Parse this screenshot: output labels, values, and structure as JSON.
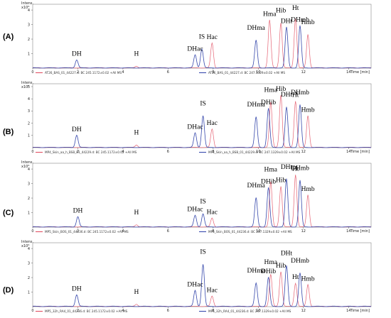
{
  "chart_data": [
    {
      "type": "line",
      "panel_label": "(A)",
      "y_axis_label": "Intens.",
      "y_multiplier": "x10⁶",
      "x_axis_label": "Time [min]",
      "xlim": [
        0,
        15
      ],
      "ylim": [
        0,
        4.2
      ],
      "xticks": [
        "0",
        "2",
        "4",
        "6",
        "8",
        "10",
        "12",
        "14"
      ],
      "yticks": [
        "1",
        "2",
        "3",
        "4"
      ],
      "legend": [
        "AT26_BAS_01_44227.d: BC 245.1172±0.02 +All MS",
        "AT26_BAS_01_44227.d: BC 247.1329±0.02 +All MS"
      ],
      "series_colors": [
        "#e0465a",
        "#2c3fa8"
      ],
      "peaks": [
        {
          "label": "DH",
          "x": 1.95,
          "y": 0.55,
          "series": 1
        },
        {
          "label": "H",
          "x": 4.6,
          "y": 0.12,
          "series": 0
        },
        {
          "label": "DHac",
          "x": 7.2,
          "y": 0.9,
          "series": 1
        },
        {
          "label": "IS",
          "x": 7.5,
          "y": 1.3,
          "series": 1
        },
        {
          "label": "Hac",
          "x": 7.95,
          "y": 1.7,
          "series": 0
        },
        {
          "label": "DHma",
          "x": 9.9,
          "y": 1.9,
          "series": 1
        },
        {
          "label": "Hma",
          "x": 10.5,
          "y": 3.3,
          "series": 0
        },
        {
          "label": "Hib",
          "x": 11.0,
          "y": 3.1,
          "series": 0
        },
        {
          "label": "DHt",
          "x": 11.25,
          "y": 2.8,
          "series": 1
        },
        {
          "label": "Ht",
          "x": 11.65,
          "y": 3.4,
          "series": 0
        },
        {
          "label": "DHmb",
          "x": 11.85,
          "y": 2.9,
          "series": 1
        },
        {
          "label": "Hmb",
          "x": 12.2,
          "y": 2.3,
          "series": 0
        }
      ]
    },
    {
      "type": "line",
      "panel_label": "(B)",
      "y_axis_label": "Intens.",
      "y_multiplier": "x10⁶",
      "x_axis_label": "Time [min]",
      "xlim": [
        0,
        15
      ],
      "ylim": [
        0,
        5.0
      ],
      "xticks": [
        "0",
        "2",
        "4",
        "6",
        "8",
        "10",
        "12",
        "14"
      ],
      "yticks": [
        "1",
        "2",
        "3",
        "4",
        "5"
      ],
      "legend": [
        "MP4_Skin_aa_h_BSB_01_44229.d: BC 245.1172±0.02 +All MS",
        "MP4_Skin_aa_h_BSB_01_44229.d: BC 247.1329±0.02 +All MS"
      ],
      "series_colors": [
        "#e0465a",
        "#2c3fa8"
      ],
      "peaks": [
        {
          "label": "DH",
          "x": 1.95,
          "y": 1.0,
          "series": 1
        },
        {
          "label": "H",
          "x": 4.6,
          "y": 0.2,
          "series": 0
        },
        {
          "label": "DHac",
          "x": 7.2,
          "y": 1.2,
          "series": 1
        },
        {
          "label": "IS",
          "x": 7.55,
          "y": 2.6,
          "series": 1
        },
        {
          "label": "Hac",
          "x": 7.95,
          "y": 1.5,
          "series": 0
        },
        {
          "label": "DHma",
          "x": 9.9,
          "y": 2.5,
          "series": 1
        },
        {
          "label": "DHib",
          "x": 10.45,
          "y": 3.2,
          "series": 1
        },
        {
          "label": "Hma",
          "x": 10.55,
          "y": 3.7,
          "series": 0
        },
        {
          "label": "Hib",
          "x": 11.0,
          "y": 4.3,
          "series": 0
        },
        {
          "label": "DHt",
          "x": 11.25,
          "y": 3.3,
          "series": 1
        },
        {
          "label": "Ht",
          "x": 11.65,
          "y": 3.8,
          "series": 0
        },
        {
          "label": "DHmb",
          "x": 11.85,
          "y": 3.5,
          "series": 1
        },
        {
          "label": "Hmb",
          "x": 12.2,
          "y": 2.6,
          "series": 0
        }
      ]
    },
    {
      "type": "line",
      "panel_label": "(C)",
      "y_axis_label": "Intens.",
      "y_multiplier": "x10⁶",
      "x_axis_label": "Time [min]",
      "xlim": [
        0,
        15
      ],
      "ylim": [
        0,
        4.2
      ],
      "xticks": [
        "0",
        "2",
        "4",
        "6",
        "8",
        "10",
        "12",
        "14"
      ],
      "yticks": [
        "1",
        "2",
        "3",
        "4"
      ],
      "legend": [
        "MP5_Skin_BOS_01_44236.d: BC 245.1172±0.02 +All MS",
        "MP5_Skin_BOS_01_44236.d: BC 247.1329±0.02 +All MS"
      ],
      "series_colors": [
        "#e0465a",
        "#2c3fa8"
      ],
      "peaks": [
        {
          "label": "DH",
          "x": 2.0,
          "y": 0.7,
          "series": 1
        },
        {
          "label": "H",
          "x": 4.6,
          "y": 0.15,
          "series": 0
        },
        {
          "label": "DHac",
          "x": 7.2,
          "y": 0.8,
          "series": 1
        },
        {
          "label": "IS",
          "x": 7.55,
          "y": 0.9,
          "series": 1
        },
        {
          "label": "Hac",
          "x": 7.95,
          "y": 0.6,
          "series": 0
        },
        {
          "label": "DHma",
          "x": 9.9,
          "y": 2.0,
          "series": 1
        },
        {
          "label": "DHib",
          "x": 10.45,
          "y": 2.7,
          "series": 1
        },
        {
          "label": "Hma",
          "x": 10.55,
          "y": 3.1,
          "series": 0
        },
        {
          "label": "Hib",
          "x": 11.0,
          "y": 2.8,
          "series": 0
        },
        {
          "label": "DHt",
          "x": 11.25,
          "y": 3.3,
          "series": 1
        },
        {
          "label": "Ht",
          "x": 11.65,
          "y": 3.6,
          "series": 0
        },
        {
          "label": "DHmb",
          "x": 11.85,
          "y": 3.2,
          "series": 1
        },
        {
          "label": "Hmb",
          "x": 12.2,
          "y": 2.2,
          "series": 0
        }
      ]
    },
    {
      "type": "line",
      "panel_label": "(D)",
      "y_axis_label": "Intens.",
      "y_multiplier": "x10⁶",
      "x_axis_label": "Time [min]",
      "xlim": [
        0,
        15
      ],
      "ylim": [
        0,
        4.2
      ],
      "xticks": [
        "0",
        "2",
        "4",
        "6",
        "8",
        "10",
        "12",
        "14"
      ],
      "yticks": [
        "1",
        "2",
        "3",
        "4"
      ],
      "legend": [
        "MP5_32h_RA4_01_44236.d: BC 245.1172±0.02 +All MS",
        "MP5_32h_RA4_01_44236.d: BC 247.1329±0.02 +All MS"
      ],
      "series_colors": [
        "#e0465a",
        "#2c3fa8"
      ],
      "peaks": [
        {
          "label": "DH",
          "x": 1.95,
          "y": 0.8,
          "series": 1
        },
        {
          "label": "H",
          "x": 4.6,
          "y": 0.15,
          "series": 0
        },
        {
          "label": "DHac",
          "x": 7.2,
          "y": 1.1,
          "series": 1
        },
        {
          "label": "IS",
          "x": 7.55,
          "y": 2.9,
          "series": 1
        },
        {
          "label": "Hac",
          "x": 7.95,
          "y": 0.7,
          "series": 0
        },
        {
          "label": "DHma",
          "x": 9.9,
          "y": 1.6,
          "series": 1
        },
        {
          "label": "DHib",
          "x": 10.45,
          "y": 2.0,
          "series": 1
        },
        {
          "label": "Hma",
          "x": 10.55,
          "y": 2.2,
          "series": 0
        },
        {
          "label": "Hib",
          "x": 11.0,
          "y": 2.4,
          "series": 0
        },
        {
          "label": "DHt",
          "x": 11.25,
          "y": 2.8,
          "series": 1
        },
        {
          "label": "Ht",
          "x": 11.65,
          "y": 1.6,
          "series": 0
        },
        {
          "label": "DHmb",
          "x": 11.85,
          "y": 2.3,
          "series": 1
        },
        {
          "label": "Hmb",
          "x": 12.2,
          "y": 1.5,
          "series": 0
        }
      ]
    }
  ]
}
